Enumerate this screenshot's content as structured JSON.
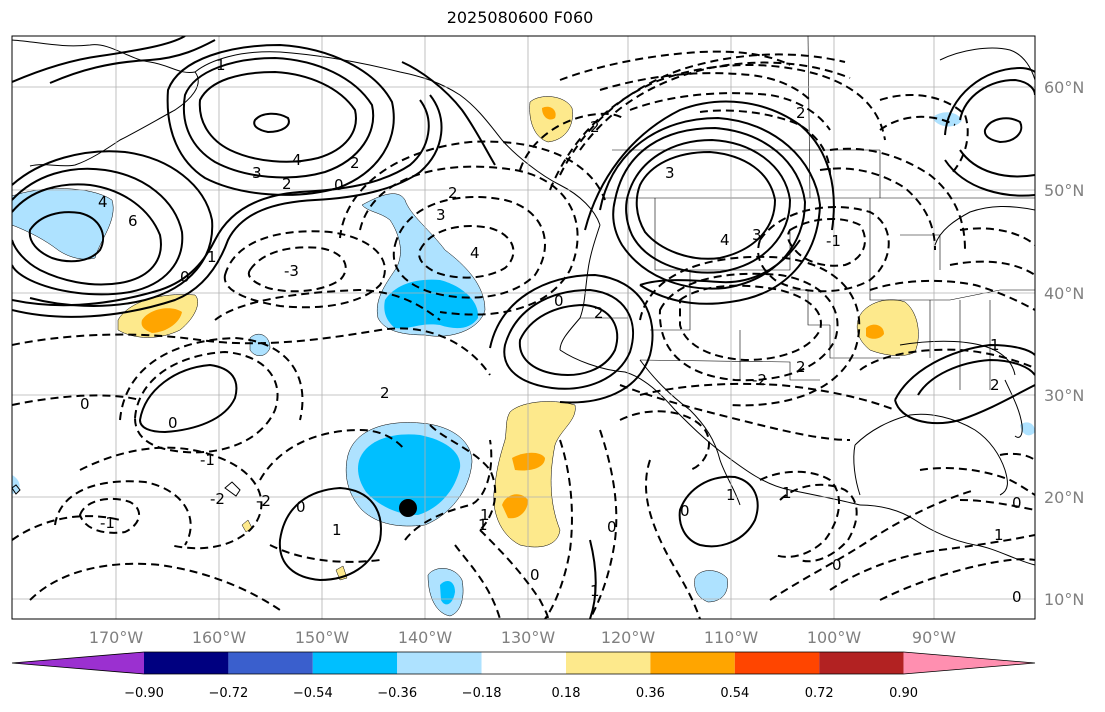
{
  "title": "2025080600 F060",
  "lat_labels": [
    "60°N",
    "50°N",
    "40°N",
    "30°N",
    "20°N",
    "10°N"
  ],
  "lon_labels": [
    "170°W",
    "160°W",
    "150°W",
    "140°W",
    "130°W",
    "120°W",
    "110°W",
    "100°W",
    "90°W"
  ],
  "colorbar": {
    "colors": [
      "#9b30d0",
      "#000080",
      "#3a5fcd",
      "#00bfff",
      "#aee2ff",
      "#ffffff",
      "#fde98c",
      "#ffa500",
      "#ff4500",
      "#b22222",
      "#ff8fb0"
    ],
    "tick_labels": [
      "−0.90",
      "−0.72",
      "−0.54",
      "−0.36",
      "−0.18",
      "0.18",
      "0.36",
      "0.54",
      "0.72",
      "0.90"
    ]
  },
  "contour_labels": [
    "4",
    "6",
    "3",
    "4",
    "2",
    "0",
    "1",
    "0",
    "2",
    "3",
    "4",
    "-3",
    "-1",
    "-2",
    "3",
    "2",
    "0",
    "3",
    "4",
    "2",
    "1",
    "0",
    "1",
    "2",
    "-1",
    "-2",
    "0",
    "2",
    "2",
    "0",
    "1",
    "1",
    "0",
    "-1",
    "-2",
    "2",
    "0",
    "1",
    "0",
    "1",
    "1",
    "0",
    "2",
    "0",
    "1",
    "1",
    "0"
  ]
}
